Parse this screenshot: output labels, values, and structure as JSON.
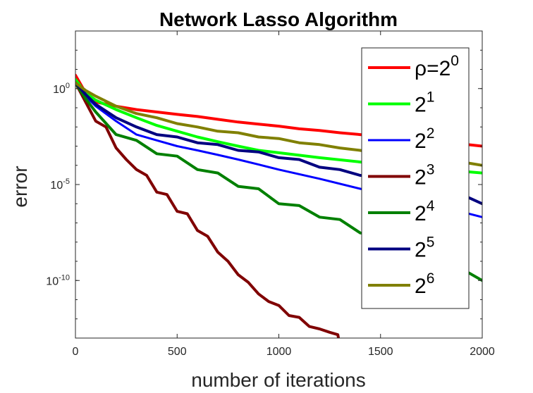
{
  "chart_data": {
    "type": "line",
    "title": "Network Lasso Algorithm",
    "xlabel": "number of iterations",
    "ylabel": "error",
    "y_scale": "log",
    "xlim": [
      0,
      2000
    ],
    "ylim": [
      1e-13,
      1000.0
    ],
    "x_ticks": [
      "0",
      "500",
      "1000",
      "1500",
      "2000"
    ],
    "y_ticks": [
      {
        "base": "10",
        "exp": "0",
        "value": 1
      },
      {
        "base": "10",
        "exp": "-5",
        "value": 1e-05
      },
      {
        "base": "10",
        "exp": "-10",
        "value": 1e-10
      }
    ],
    "grid": false,
    "legend_position": "top-right",
    "series": [
      {
        "name": "ρ=2",
        "sup": "0",
        "color": "#ff0000",
        "width": 4,
        "x": [
          0,
          50,
          100,
          200,
          300,
          400,
          500,
          600,
          700,
          800,
          900,
          1000,
          1100,
          1200,
          1300,
          1400,
          1500,
          1600,
          1700,
          1800,
          1900,
          2000
        ],
        "y": [
          5,
          0.6,
          0.2,
          0.12,
          0.08,
          0.06,
          0.045,
          0.035,
          0.025,
          0.018,
          0.014,
          0.011,
          0.008,
          0.0065,
          0.005,
          0.004,
          0.0032,
          0.0026,
          0.002,
          0.0016,
          0.0013,
          0.001
        ]
      },
      {
        "name": "2",
        "sup": "1",
        "color": "#00ff00",
        "width": 4,
        "x": [
          0,
          50,
          100,
          200,
          300,
          400,
          500,
          600,
          700,
          800,
          900,
          1000,
          1200,
          1400,
          1600,
          1800,
          2000
        ],
        "y": [
          3,
          0.6,
          0.25,
          0.08,
          0.03,
          0.012,
          0.006,
          0.003,
          0.0017,
          0.001,
          0.0006,
          0.00045,
          0.00025,
          0.00015,
          9e-05,
          6e-05,
          4e-05
        ]
      },
      {
        "name": "2",
        "sup": "2",
        "color": "#0000ff",
        "width": 3,
        "x": [
          0,
          50,
          100,
          200,
          300,
          400,
          500,
          600,
          700,
          800,
          900,
          1000,
          1200,
          1400,
          1600,
          1800,
          2000
        ],
        "y": [
          2,
          0.4,
          0.12,
          0.02,
          0.004,
          0.002,
          0.001,
          0.0006,
          0.00035,
          0.0002,
          0.00011,
          6e-05,
          2e-05,
          6e-06,
          2e-06,
          7e-07,
          2e-07
        ]
      },
      {
        "name": "2",
        "sup": "3",
        "color": "#800000",
        "width": 4,
        "x": [
          0,
          50,
          100,
          150,
          200,
          250,
          300,
          350,
          400,
          450,
          500,
          550,
          600,
          650,
          700,
          750,
          800,
          850,
          900,
          950,
          1000,
          1050,
          1100,
          1150,
          1200,
          1250,
          1290,
          1310
        ],
        "y": [
          2,
          0.2,
          0.02,
          0.01,
          0.0008,
          0.0002,
          6e-05,
          3e-05,
          4e-06,
          3e-06,
          4e-07,
          3e-07,
          4e-08,
          2e-08,
          3e-09,
          1e-09,
          2e-10,
          8e-11,
          2e-11,
          8e-12,
          5e-12,
          1.5e-12,
          1.2e-12,
          4e-13,
          3e-13,
          2e-13,
          1.5e-13,
          1e-14
        ]
      },
      {
        "name": "2",
        "sup": "4",
        "color": "#008000",
        "width": 4,
        "x": [
          0,
          50,
          100,
          200,
          300,
          400,
          500,
          600,
          700,
          800,
          900,
          1000,
          1100,
          1200,
          1300,
          1400,
          1500,
          1600,
          1700,
          1800,
          1900,
          2000
        ],
        "y": [
          2,
          0.3,
          0.06,
          0.004,
          0.002,
          0.0004,
          0.0003,
          6e-05,
          4e-05,
          8e-06,
          6e-06,
          1e-06,
          8e-07,
          2e-07,
          1.5e-07,
          3e-08,
          2e-08,
          5e-09,
          3e-09,
          8e-10,
          4e-10,
          1e-10
        ]
      },
      {
        "name": "2",
        "sup": "5",
        "color": "#000080",
        "width": 4,
        "x": [
          0,
          50,
          100,
          200,
          300,
          400,
          500,
          600,
          700,
          800,
          900,
          1000,
          1100,
          1200,
          1300,
          1400,
          1500,
          1600,
          1700,
          1800,
          1900,
          2000
        ],
        "y": [
          2,
          0.5,
          0.15,
          0.03,
          0.01,
          0.004,
          0.003,
          0.0015,
          0.0012,
          0.0006,
          0.0005,
          0.00025,
          0.0002,
          8e-05,
          6e-05,
          3e-05,
          2.5e-05,
          1e-05,
          8e-06,
          4e-06,
          3e-06,
          1e-06
        ]
      },
      {
        "name": "2",
        "sup": "6",
        "color": "#808000",
        "width": 4,
        "x": [
          0,
          50,
          100,
          200,
          300,
          400,
          500,
          600,
          700,
          800,
          900,
          1000,
          1100,
          1200,
          1300,
          1400,
          1500,
          1600,
          1700,
          1800,
          1900,
          2000
        ],
        "y": [
          2,
          0.8,
          0.4,
          0.12,
          0.05,
          0.03,
          0.015,
          0.01,
          0.006,
          0.005,
          0.003,
          0.0025,
          0.0015,
          0.0012,
          0.0008,
          0.0006,
          0.0004,
          0.00035,
          0.00025,
          0.0002,
          0.00015,
          0.0001
        ]
      }
    ]
  }
}
